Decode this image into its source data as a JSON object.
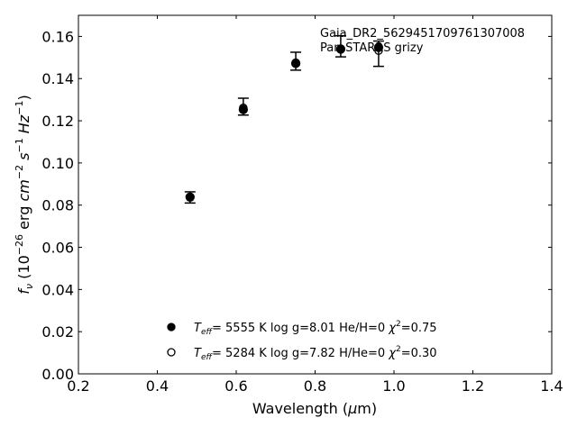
{
  "chart_data": {
    "type": "scatter",
    "xlabel": "Wavelength (μm)",
    "ylabel": "f_ν (10^-26 erg cm^-2 s^-1 Hz^-1)",
    "xlim": [
      0.2,
      1.4
    ],
    "ylim": [
      0.0,
      0.17
    ],
    "xticks": [
      "0.2",
      "0.4",
      "0.6",
      "0.8",
      "1.0",
      "1.2",
      "1.4"
    ],
    "yticks": [
      "0.00",
      "0.02",
      "0.04",
      "0.06",
      "0.08",
      "0.10",
      "0.12",
      "0.14",
      "0.16"
    ],
    "grid": false,
    "annotation": [
      "Gaia_DR2_5629451709761307008",
      "Pan-STARRS grizy"
    ],
    "observed": {
      "x": [
        0.483,
        0.618,
        0.751,
        0.865,
        0.961
      ],
      "y": [
        0.0838,
        0.1262,
        0.148,
        0.1553,
        0.1518
      ],
      "yerr_low": [
        0.0028,
        0.0035,
        0.004,
        0.005,
        0.006
      ],
      "yerr_high": [
        0.0025,
        0.0045,
        0.0045,
        0.005,
        0.006
      ]
    },
    "series": [
      {
        "name": "T_eff= 5555 K  log g=8.01  He/H=0  χ²=0.75",
        "marker": "filled-circle",
        "label": {
          "teff": "5555 K",
          "logg": "log g=8.01",
          "comp": "He/H=0",
          "chi2": "=0.75"
        },
        "x": [
          0.483,
          0.618,
          0.751,
          0.865,
          0.961
        ],
        "y": [
          0.0838,
          0.1253,
          0.1472,
          0.154,
          0.1548
        ]
      },
      {
        "name": "T_eff= 5284 K  log g=7.82  H/He=0  χ²=0.30",
        "marker": "open-circle",
        "label": {
          "teff": "5284 K",
          "logg": "log g=7.82",
          "comp": "H/He=0",
          "chi2": "=0.30"
        },
        "x": [
          0.483,
          0.618,
          0.751,
          0.865,
          0.961
        ],
        "y": [
          0.084,
          0.1262,
          0.1476,
          0.1538,
          0.1532
        ]
      }
    ],
    "legend_position": "lower-center",
    "colors": {
      "marker": "#000000"
    }
  }
}
